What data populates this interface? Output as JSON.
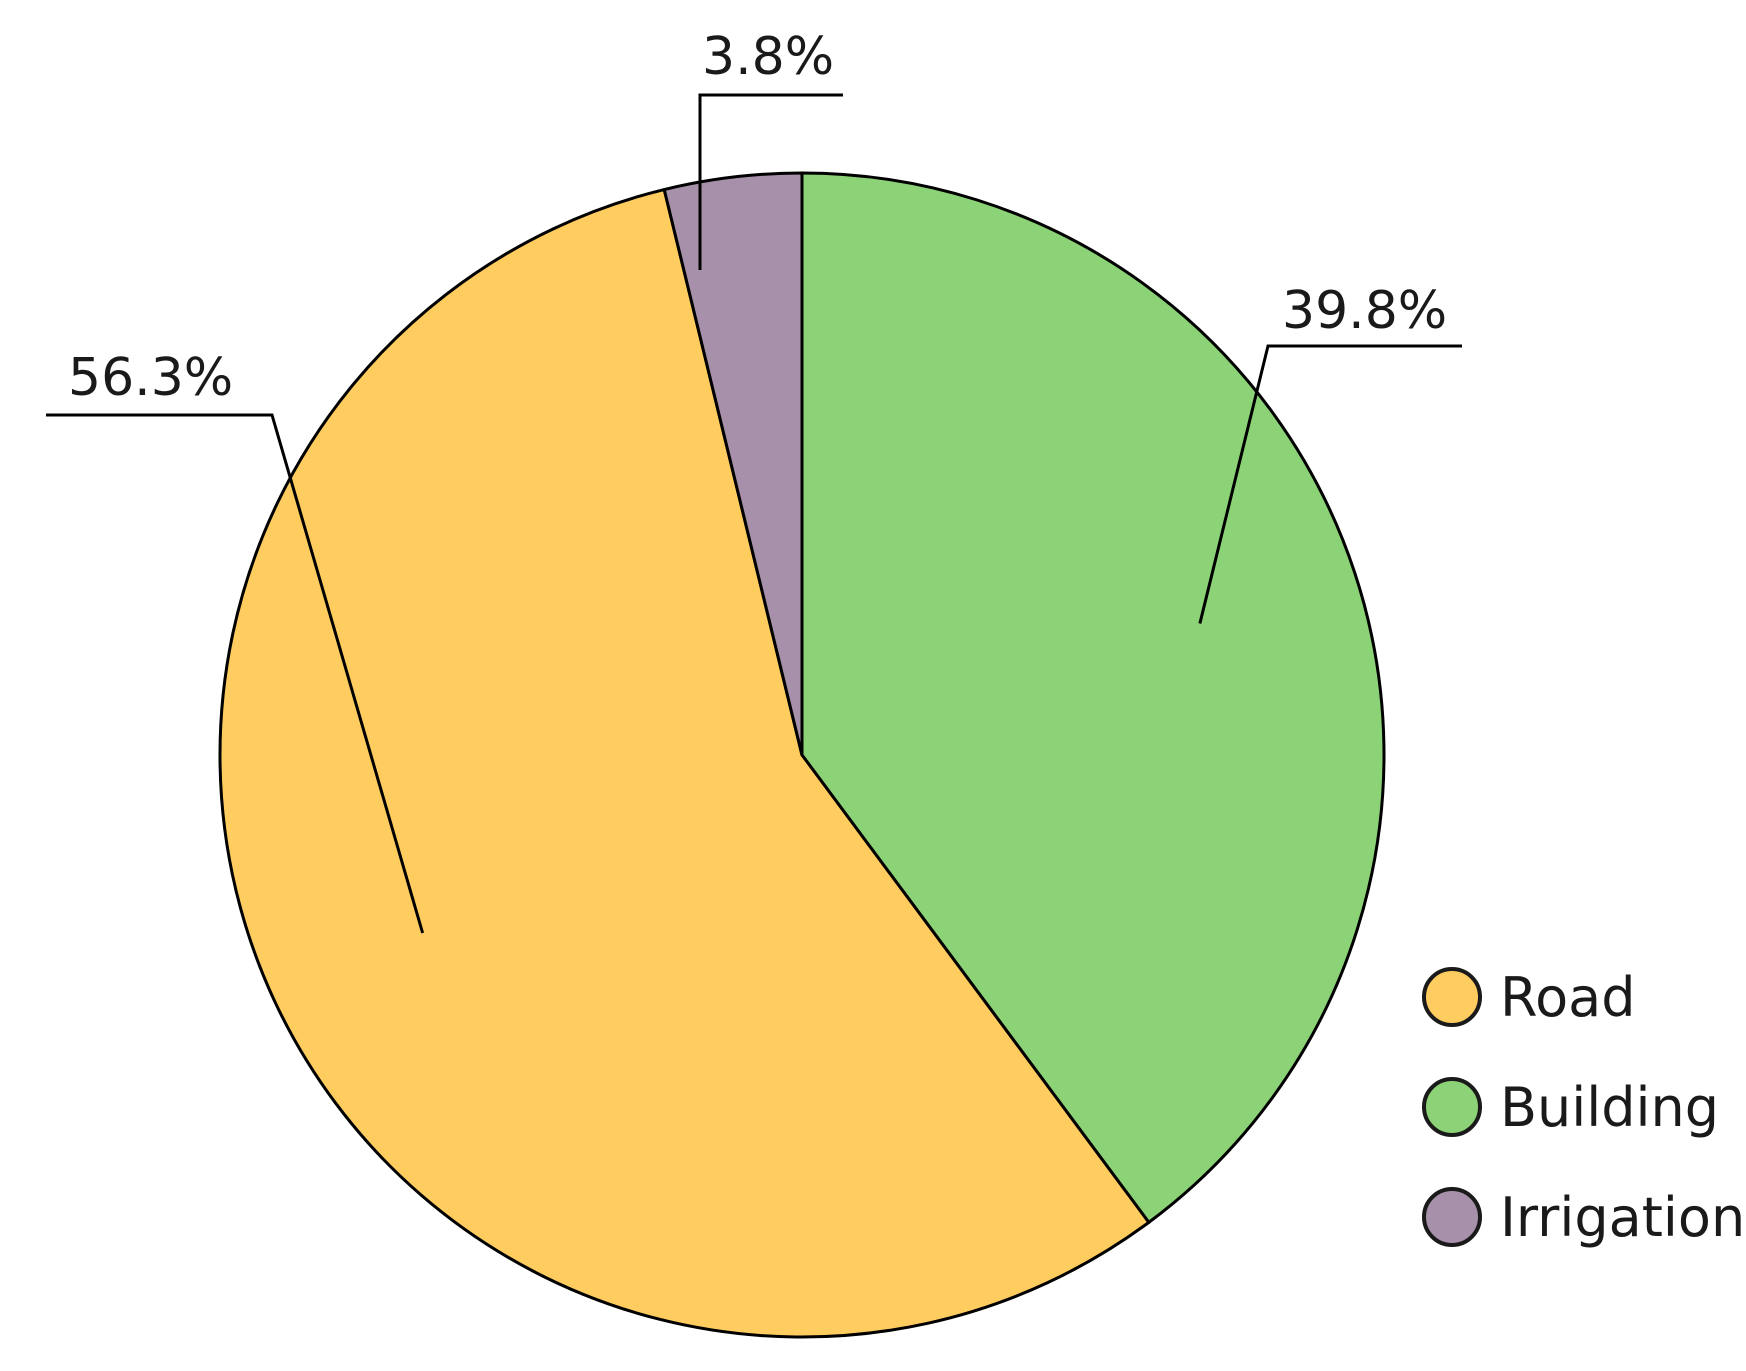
{
  "chart_data": {
    "type": "pie",
    "title": "",
    "categories": [
      "Road",
      "Building",
      "Irrigation"
    ],
    "values": [
      56.3,
      39.8,
      3.8
    ],
    "value_labels": [
      "56.3%",
      "39.8%",
      "3.8%"
    ],
    "colors": [
      "#FECC5F",
      "#8CD276",
      "#A790AA"
    ],
    "start_angle_deg": 0,
    "direction": "clockwise",
    "slice_order": [
      "Building",
      "Road",
      "Irrigation"
    ],
    "legend": {
      "position": "bottom-right",
      "entries": [
        "Road",
        "Building",
        "Irrigation"
      ]
    }
  }
}
